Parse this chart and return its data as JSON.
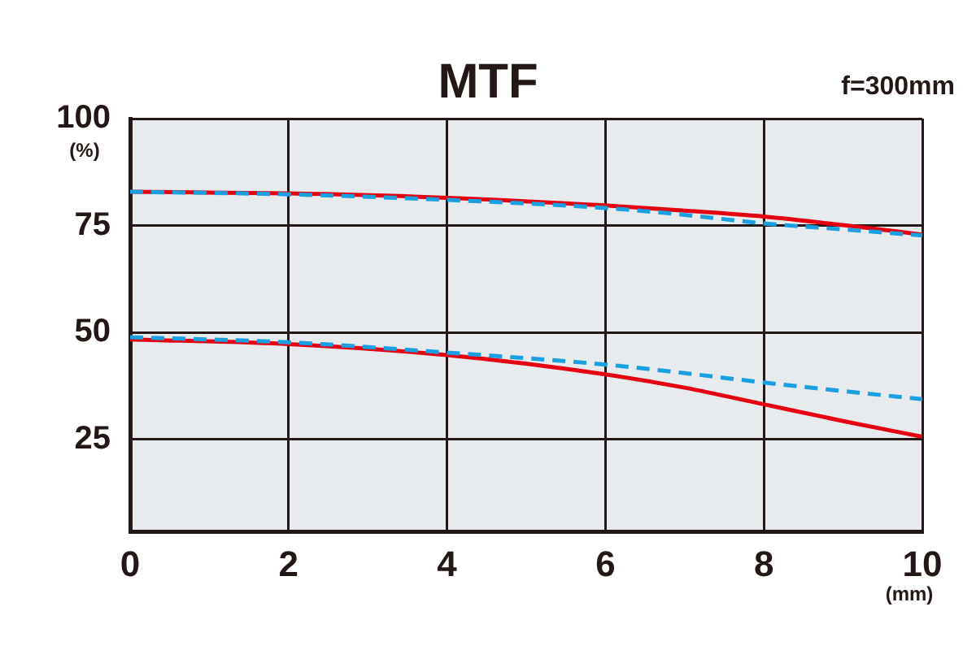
{
  "chart_data": {
    "type": "line",
    "title": "MTF",
    "annotations": [
      "f=300mm"
    ],
    "xlabel": "(mm)",
    "ylabel": "(%)",
    "x": [
      0,
      2,
      4,
      6,
      7,
      8,
      9,
      10
    ],
    "series": [
      {
        "color": "#e60012",
        "line_style": "solid",
        "values": [
          82.9,
          82.5,
          81.5,
          79.7,
          78.5,
          77.1,
          75.1,
          72.9
        ]
      },
      {
        "color": "#1a9fe0",
        "line_style": "dashed",
        "values": [
          82.9,
          82.3,
          81,
          79.1,
          77.5,
          75.5,
          74.1,
          72.7
        ]
      },
      {
        "color": "#e60012",
        "line_style": "solid",
        "values": [
          48.4,
          47.3,
          44.7,
          40.2,
          37.1,
          33.2,
          29.3,
          25.6
        ]
      },
      {
        "color": "#1a9fe0",
        "line_style": "dashed",
        "values": [
          48.9,
          47.7,
          45.3,
          42.5,
          40.5,
          38.3,
          36.3,
          34.4
        ]
      }
    ],
    "xlim": [
      0,
      10
    ],
    "xticks": [
      0,
      2,
      4,
      6,
      8,
      10
    ],
    "ylim": [
      3.5,
      100
    ],
    "yticks": [
      25,
      50,
      75,
      100
    ],
    "grid": true,
    "legend": false,
    "marker": "none"
  }
}
